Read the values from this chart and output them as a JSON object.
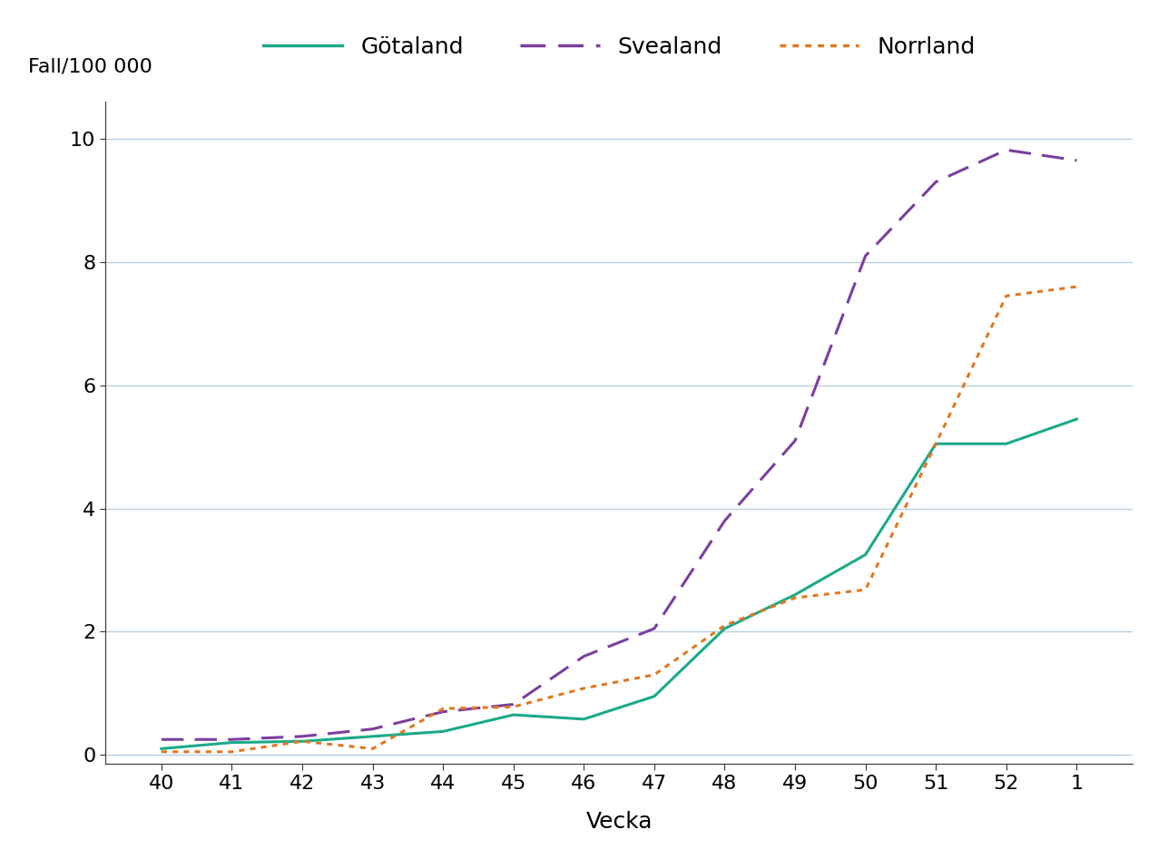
{
  "x_labels": [
    "40",
    "41",
    "42",
    "43",
    "44",
    "45",
    "46",
    "47",
    "48",
    "49",
    "50",
    "51",
    "52",
    "1"
  ],
  "x_values": [
    40,
    41,
    42,
    43,
    44,
    45,
    46,
    47,
    48,
    49,
    50,
    51,
    52,
    53
  ],
  "gotaland": [
    0.1,
    0.2,
    0.22,
    0.3,
    0.38,
    0.65,
    0.58,
    0.95,
    2.05,
    2.6,
    3.25,
    5.05,
    5.05,
    5.45
  ],
  "svealand": [
    0.25,
    0.25,
    0.3,
    0.42,
    0.7,
    0.82,
    1.6,
    2.05,
    3.8,
    5.1,
    8.1,
    9.3,
    9.82,
    9.65
  ],
  "norrland": [
    0.05,
    0.05,
    0.22,
    0.1,
    0.75,
    0.78,
    1.08,
    1.3,
    2.1,
    2.55,
    2.68,
    5.05,
    7.45,
    7.6
  ],
  "gotaland_color": "#1aaa8a",
  "svealand_color": "#7b3fa0",
  "norrland_color": "#e07820",
  "ylabel": "Fall/100 000",
  "xlabel": "Vecka",
  "ylim": [
    -0.15,
    10.6
  ],
  "yticks": [
    0,
    2,
    4,
    6,
    8,
    10
  ],
  "background_color": "#ffffff",
  "grid_color": "#b8cfe0",
  "legend_labels": [
    "Götaland",
    "Svealand",
    "Norrland"
  ]
}
